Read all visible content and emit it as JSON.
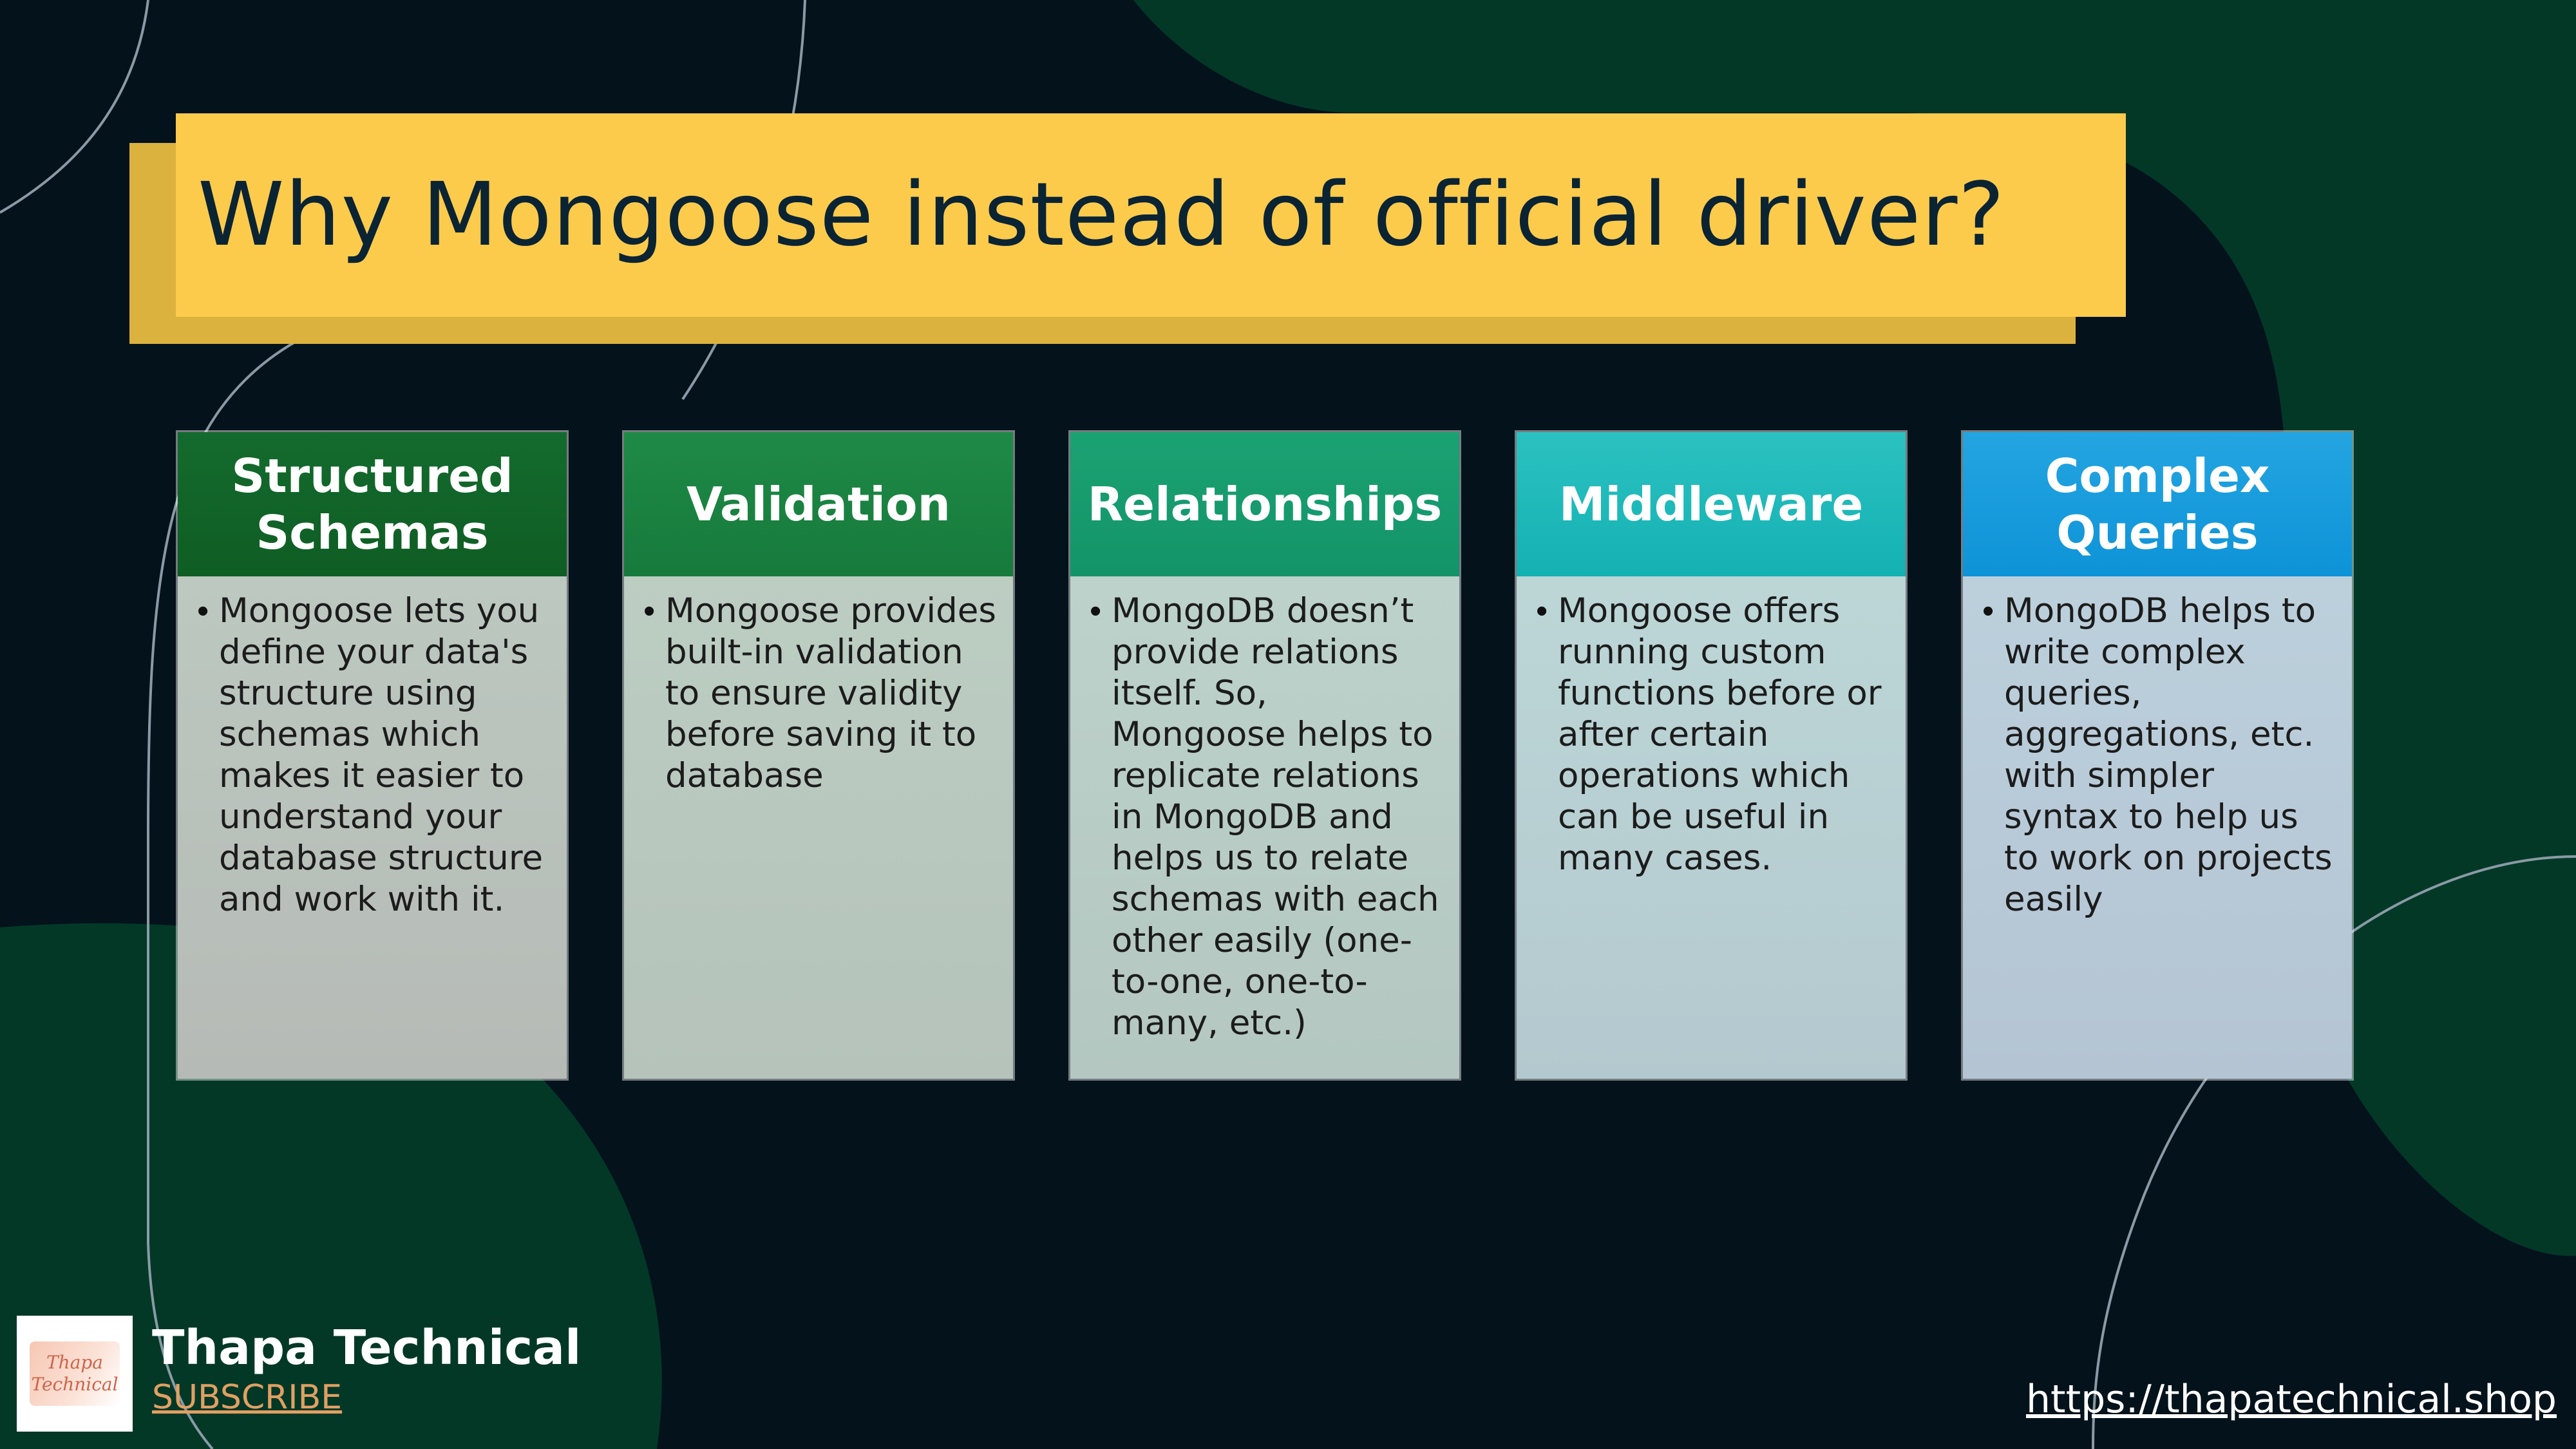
{
  "slide": {
    "title": "Why Mongoose instead of official driver?"
  },
  "cards": [
    {
      "heading": "Structured\nSchemas",
      "text": "Mongoose lets you define your data's structure using schemas which makes it easier to understand your database structure and work with it."
    },
    {
      "heading": "Validation",
      "text": "Mongoose provides built-in validation to ensure validity before saving it to database"
    },
    {
      "heading": "Relationships",
      "text": "MongoDB doesn’t provide relations itself. So, Mongoose helps to replicate relations in MongoDB and helps us to relate schemas with each other easily (one-to-one, one-to-many, etc.)"
    },
    {
      "heading": "Middleware",
      "text": "Mongoose offers running custom functions before or after certain operations which can be useful in many cases."
    },
    {
      "heading": "Complex\nQueries",
      "text": "MongoDB helps to write complex queries, aggregations, etc. with simpler syntax to help us to work on projects easily"
    }
  ],
  "footer": {
    "logo_line1": "Thapa",
    "logo_line2": "Technical",
    "brand_name": "Thapa Technical",
    "subscribe_label": "SUBSCRIBE",
    "website": "https://thapatechnical.shop"
  },
  "colors": {
    "background": "#04121b",
    "blob": "#033827",
    "title_bar": "#fccb4c",
    "title_shadow": "#dcb23e"
  }
}
